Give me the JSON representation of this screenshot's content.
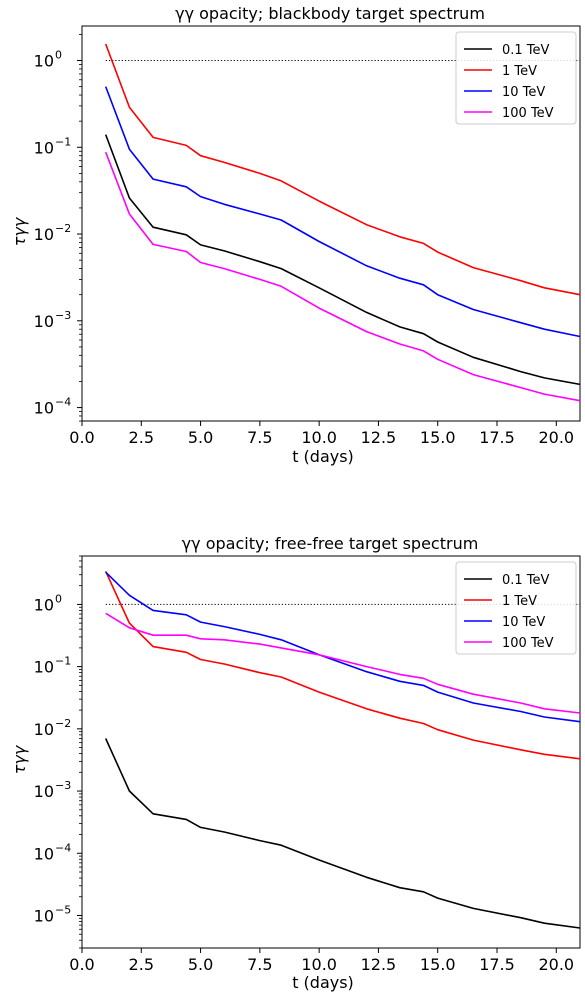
{
  "chart_data": [
    {
      "type": "line",
      "title": "γγ opacity; blackbody target spectrum",
      "xlabel": "t (days)",
      "ylabel": "τγγ",
      "xlim": [
        0,
        21
      ],
      "ylim": [
        7e-05,
        2.5
      ],
      "yscale": "log",
      "xticks": [
        "0.0",
        "2.5",
        "5.0",
        "7.5",
        "10.0",
        "12.5",
        "15.0",
        "17.5",
        "20.0"
      ],
      "yticks": [
        {
          "base": "10",
          "exp": "0"
        },
        {
          "base": "10",
          "exp": "−1"
        },
        {
          "base": "10",
          "exp": "−2"
        },
        {
          "base": "10",
          "exp": "−3"
        },
        {
          "base": "10",
          "exp": "−4"
        }
      ],
      "reference_line": {
        "y": 1,
        "style": "dotted"
      },
      "legend_position": "top-right",
      "x": [
        1,
        2,
        3,
        4.4,
        5,
        6,
        7.5,
        8.4,
        10,
        12,
        13.4,
        14.4,
        15,
        16.5,
        18.5,
        19.5,
        21
      ],
      "series": [
        {
          "name": "0.1 TeV",
          "color": "#000000",
          "values": [
            0.14,
            0.026,
            0.012,
            0.0098,
            0.0075,
            0.0064,
            0.0048,
            0.004,
            0.0024,
            0.00125,
            0.00085,
            0.00071,
            0.00057,
            0.00038,
            0.00026,
            0.00022,
            0.000185
          ]
        },
        {
          "name": "1 TeV",
          "color": "#ff0000",
          "values": [
            1.55,
            0.29,
            0.13,
            0.105,
            0.08,
            0.067,
            0.05,
            0.041,
            0.024,
            0.0128,
            0.0093,
            0.0078,
            0.0062,
            0.0041,
            0.0029,
            0.0024,
            0.002
          ]
        },
        {
          "name": "10 TeV",
          "color": "#0000ff",
          "values": [
            0.5,
            0.095,
            0.043,
            0.035,
            0.027,
            0.022,
            0.017,
            0.0145,
            0.0082,
            0.0043,
            0.0031,
            0.0026,
            0.002,
            0.00135,
            0.00095,
            0.0008,
            0.00066
          ]
        },
        {
          "name": "100 TeV",
          "color": "#ff00ff",
          "values": [
            0.088,
            0.017,
            0.0076,
            0.0063,
            0.0047,
            0.004,
            0.003,
            0.0025,
            0.0014,
            0.00075,
            0.00054,
            0.00045,
            0.00036,
            0.00024,
            0.00017,
            0.000143,
            0.00012
          ]
        }
      ]
    },
    {
      "type": "line",
      "title": "γγ opacity; free-free target spectrum",
      "xlabel": "t (days)",
      "ylabel": "τγγ",
      "xlim": [
        0,
        21
      ],
      "ylim": [
        3e-06,
        6
      ],
      "yscale": "log",
      "xticks": [
        "0.0",
        "2.5",
        "5.0",
        "7.5",
        "10.0",
        "12.5",
        "15.0",
        "17.5",
        "20.0"
      ],
      "yticks": [
        {
          "base": "10",
          "exp": "0"
        },
        {
          "base": "10",
          "exp": "−1"
        },
        {
          "base": "10",
          "exp": "−2"
        },
        {
          "base": "10",
          "exp": "−3"
        },
        {
          "base": "10",
          "exp": "−4"
        },
        {
          "base": "10",
          "exp": "−5"
        }
      ],
      "reference_line": {
        "y": 1,
        "style": "dotted"
      },
      "legend_position": "top-right",
      "x": [
        1,
        2,
        3,
        4.4,
        5,
        6,
        7.5,
        8.4,
        10,
        12,
        13.4,
        14.4,
        15,
        16.5,
        18.5,
        19.5,
        21
      ],
      "series": [
        {
          "name": "0.1 TeV",
          "color": "#000000",
          "values": [
            0.007,
            0.001,
            0.00043,
            0.00035,
            0.00026,
            0.00022,
            0.00016,
            0.000135,
            7.8e-05,
            4.1e-05,
            2.8e-05,
            2.4e-05,
            1.9e-05,
            1.3e-05,
            9.2e-06,
            7.5e-06,
            6.3e-06
          ]
        },
        {
          "name": "1 TeV",
          "color": "#ff0000",
          "values": [
            3.4,
            0.5,
            0.21,
            0.17,
            0.13,
            0.11,
            0.08,
            0.068,
            0.039,
            0.021,
            0.0148,
            0.0122,
            0.0097,
            0.0066,
            0.0046,
            0.0039,
            0.0033
          ]
        },
        {
          "name": "10 TeV",
          "color": "#0000ff",
          "values": [
            3.3,
            1.4,
            0.8,
            0.68,
            0.52,
            0.44,
            0.33,
            0.27,
            0.155,
            0.083,
            0.058,
            0.05,
            0.039,
            0.026,
            0.019,
            0.0155,
            0.013
          ]
        },
        {
          "name": "100 TeV",
          "color": "#ff00ff",
          "values": [
            0.72,
            0.42,
            0.32,
            0.32,
            0.28,
            0.27,
            0.23,
            0.2,
            0.155,
            0.1,
            0.075,
            0.065,
            0.052,
            0.036,
            0.026,
            0.021,
            0.018
          ]
        }
      ]
    }
  ]
}
